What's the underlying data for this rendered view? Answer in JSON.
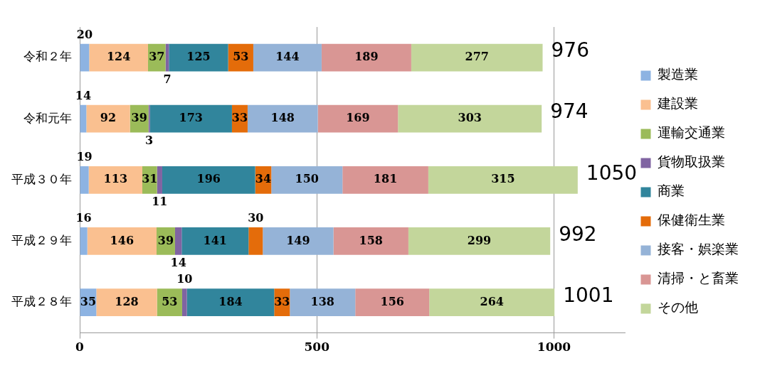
{
  "chart_data": {
    "type": "bar",
    "orientation": "horizontal",
    "stacked": true,
    "categories": [
      "令和２年",
      "令和元年",
      "平成３０年",
      "平成２９年",
      "平成２８年"
    ],
    "series": [
      {
        "name": "製造業",
        "color": "#8db3e2",
        "values": [
          20,
          14,
          19,
          16,
          35
        ]
      },
      {
        "name": "建設業",
        "color": "#fac090",
        "values": [
          124,
          92,
          113,
          146,
          128
        ]
      },
      {
        "name": "運輸交通業",
        "color": "#9bbb59",
        "values": [
          37,
          39,
          31,
          39,
          53
        ]
      },
      {
        "name": "貨物取扱業",
        "color": "#8064a2",
        "values": [
          7,
          3,
          11,
          14,
          10
        ]
      },
      {
        "name": "商業",
        "color": "#31859c",
        "values": [
          125,
          173,
          196,
          141,
          184
        ]
      },
      {
        "name": "保健衛生業",
        "color": "#e46c0a",
        "values": [
          53,
          33,
          34,
          30,
          33
        ]
      },
      {
        "name": "接客・娯楽業",
        "color": "#95b3d7",
        "values": [
          144,
          148,
          150,
          149,
          138
        ]
      },
      {
        "name": "清掃・と畜業",
        "color": "#d99694",
        "values": [
          189,
          169,
          181,
          158,
          156
        ]
      },
      {
        "name": "その他",
        "color": "#c3d69b",
        "values": [
          277,
          303,
          315,
          299,
          264
        ]
      }
    ],
    "xlim": [
      0,
      1150
    ],
    "xticks": [
      0,
      500,
      1000
    ],
    "grid": "x",
    "legend": "right",
    "data_labels": true,
    "totals": [
      "976",
      "974",
      "1050",
      "992",
      "1001"
    ]
  }
}
